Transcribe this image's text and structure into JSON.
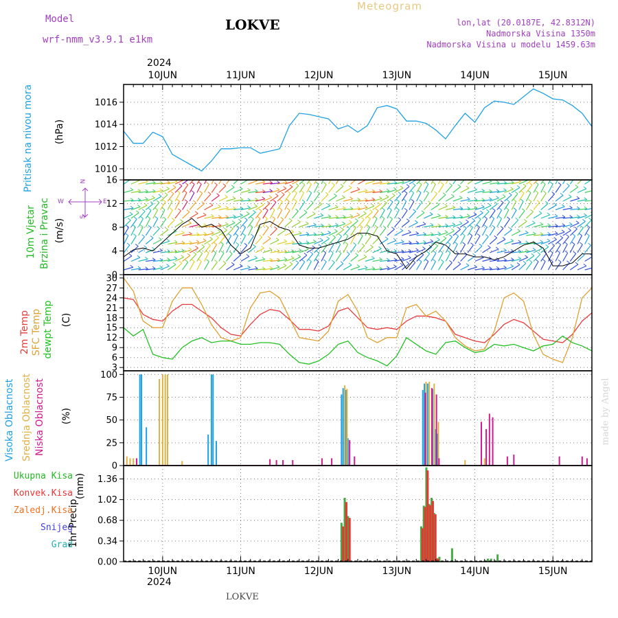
{
  "header": {
    "model_label": "Model",
    "model_name": "wrf-nmm_v3.9.1  e1km",
    "station": "LOKVE",
    "title": "Meteogram",
    "coords": "lon,lat (20.0187E, 42.8312N)",
    "elevation": "Nadmorska Visina 1350m",
    "model_elevation": "Nadmorska Visina u modelu 1459.63m",
    "year_top": "2024",
    "year_bottom": "2024",
    "footer_station": "LOKVE",
    "credit": "made by Angel"
  },
  "time_axis": {
    "start_hour": 0,
    "end_hour": 144,
    "days": [
      "10JUN",
      "11JUN",
      "12JUN",
      "13JUN",
      "14JUN",
      "15JUN"
    ],
    "day_hours": [
      12,
      36,
      60,
      84,
      108,
      132
    ]
  },
  "legend": {
    "wind_compass": [
      "N",
      "S",
      "W",
      "E"
    ],
    "precip_types": [
      {
        "label": "Ukupna Kisa",
        "color": "#22bb22"
      },
      {
        "label": "Konvek.Kisa",
        "color": "#ee3333"
      },
      {
        "label": "Zaledj.Kisa",
        "color": "#f07020"
      },
      {
        "label": "Snijeg",
        "color": "#4040dd"
      },
      {
        "label": "Grad",
        "color": "#20b0b0"
      }
    ]
  },
  "chart_data": [
    {
      "type": "line",
      "panel": "pressure",
      "ylabel_main": "Pritisak na nivou mora",
      "unit": "(hPa)",
      "ylim": [
        1009,
        1017.6
      ],
      "yticks": [
        1010,
        1012,
        1014,
        1016
      ],
      "series": [
        {
          "color": "#1ea0e6",
          "x": [
            0,
            3,
            6,
            9,
            12,
            15,
            18,
            21,
            24,
            27,
            30,
            33,
            36,
            39,
            42,
            45,
            48,
            51,
            54,
            57,
            60,
            63,
            66,
            69,
            72,
            75,
            78,
            81,
            84,
            87,
            90,
            93,
            96,
            99,
            102,
            105,
            108,
            111,
            114,
            117,
            120,
            123,
            126,
            129,
            132,
            135,
            138,
            141,
            144
          ],
          "values": [
            1013.4,
            1012.3,
            1012.3,
            1013.3,
            1012.9,
            1011.3,
            1010.8,
            1010.3,
            1009.8,
            1010.7,
            1011.8,
            1011.8,
            1011.9,
            1011.9,
            1011.4,
            1011.6,
            1011.8,
            1013.9,
            1015.0,
            1014.9,
            1014.7,
            1014.5,
            1013.6,
            1013.9,
            1013.3,
            1013.9,
            1015.5,
            1015.7,
            1015.4,
            1014.3,
            1014.3,
            1014.1,
            1013.5,
            1012.7,
            1013.9,
            1015.0,
            1014.2,
            1015.5,
            1016.1,
            1016.0,
            1015.8,
            1016.5,
            1017.2,
            1016.8,
            1016.3,
            1016.2,
            1015.7,
            1015.0,
            1013.8
          ]
        }
      ]
    },
    {
      "type": "line",
      "panel": "wind",
      "ylabel_main": "10m Vjetar",
      "ylabel_sub": "Brzina i Pravac",
      "unit": "(m/s)",
      "ylim": [
        0,
        16
      ],
      "yticks": [
        0,
        4,
        8,
        12,
        16
      ],
      "series": [
        {
          "color": "#000000",
          "x": [
            0,
            3,
            6,
            9,
            12,
            15,
            18,
            21,
            24,
            27,
            30,
            33,
            36,
            39,
            42,
            45,
            48,
            51,
            54,
            57,
            60,
            63,
            66,
            69,
            72,
            75,
            78,
            81,
            84,
            87,
            90,
            93,
            96,
            99,
            102,
            105,
            108,
            111,
            114,
            117,
            120,
            123,
            126,
            129,
            132,
            135,
            138,
            141,
            144
          ],
          "values": [
            3.0,
            4.2,
            4.5,
            4.0,
            5.5,
            7.0,
            8.5,
            9.5,
            8.0,
            8.5,
            7.5,
            5.0,
            3.5,
            4.5,
            8.5,
            9.0,
            8.0,
            7.5,
            5.0,
            4.5,
            4.5,
            5.0,
            5.5,
            6.0,
            7.0,
            7.0,
            6.5,
            4.0,
            3.5,
            1.0,
            3.0,
            4.0,
            5.5,
            5.0,
            3.5,
            3.5,
            3.0,
            3.0,
            2.5,
            3.0,
            4.0,
            5.0,
            5.5,
            4.5,
            1.5,
            1.5,
            2.0,
            3.5,
            3.5
          ]
        }
      ]
    },
    {
      "type": "line",
      "panel": "temperature",
      "ylabels": [
        "2m Temp",
        "SFC Temp",
        "dewpt Temp"
      ],
      "unit": "(C)",
      "ylim": [
        2,
        31
      ],
      "yticks": [
        3,
        6,
        9,
        12,
        15,
        18,
        21,
        24,
        27,
        30
      ],
      "series": [
        {
          "name": "2m Temp",
          "color": "#e83c3c",
          "x": [
            0,
            3,
            6,
            9,
            12,
            15,
            18,
            21,
            24,
            27,
            30,
            33,
            36,
            39,
            42,
            45,
            48,
            51,
            54,
            57,
            60,
            63,
            66,
            69,
            72,
            75,
            78,
            81,
            84,
            87,
            90,
            93,
            96,
            99,
            102,
            105,
            108,
            111,
            114,
            117,
            120,
            123,
            126,
            129,
            132,
            135,
            138,
            141,
            144
          ],
          "values": [
            24,
            23.5,
            19,
            17.5,
            17,
            20,
            22,
            22,
            20,
            18,
            15,
            13,
            12.5,
            16,
            19,
            20.5,
            20,
            17.5,
            14.5,
            14.5,
            14,
            15.5,
            20,
            21,
            18,
            15,
            14.5,
            15,
            14.5,
            17,
            18.5,
            18.5,
            18,
            17,
            13,
            12,
            11,
            10.5,
            13,
            16,
            17.5,
            16.5,
            14,
            11.5,
            11,
            10.5,
            13,
            17,
            19.5
          ]
        },
        {
          "name": "SFC Temp",
          "color": "#e0a030",
          "x": [
            0,
            3,
            6,
            9,
            12,
            15,
            18,
            21,
            24,
            27,
            30,
            33,
            36,
            39,
            42,
            45,
            48,
            51,
            54,
            57,
            60,
            63,
            66,
            69,
            72,
            75,
            78,
            81,
            84,
            87,
            90,
            93,
            96,
            99,
            102,
            105,
            108,
            111,
            114,
            117,
            120,
            123,
            126,
            129,
            132,
            135,
            138,
            141,
            144
          ],
          "values": [
            30,
            26,
            17,
            15,
            15,
            23,
            27,
            27,
            22,
            16,
            12,
            11,
            12,
            21,
            25.5,
            26,
            24,
            18,
            12,
            11.5,
            11,
            14,
            23,
            25,
            20,
            12,
            10.5,
            12,
            12,
            21,
            22,
            18.5,
            20,
            17,
            12,
            9.5,
            8,
            8.5,
            14,
            24,
            25.5,
            23,
            13,
            7,
            5.5,
            4.5,
            12,
            24,
            27
          ]
        },
        {
          "name": "dewpt Temp",
          "color": "#22c022",
          "x": [
            0,
            3,
            6,
            9,
            12,
            15,
            18,
            21,
            24,
            27,
            30,
            33,
            36,
            39,
            42,
            45,
            48,
            51,
            54,
            57,
            60,
            63,
            66,
            69,
            72,
            75,
            78,
            81,
            84,
            87,
            90,
            93,
            96,
            99,
            102,
            105,
            108,
            111,
            114,
            117,
            120,
            123,
            126,
            129,
            132,
            135,
            138,
            141,
            144
          ],
          "values": [
            15,
            12.5,
            14.5,
            7,
            6,
            5.5,
            9,
            11,
            12,
            10.5,
            11,
            11,
            10,
            10,
            10.5,
            10.5,
            10,
            7,
            4.5,
            4,
            5,
            7,
            10,
            11,
            7.5,
            6,
            5,
            3.5,
            6.5,
            12,
            10,
            8,
            7,
            10.5,
            11,
            9,
            7.5,
            8,
            10,
            9.5,
            10,
            9,
            8,
            9.5,
            10,
            12.5,
            10.5,
            9.5,
            8
          ]
        }
      ]
    },
    {
      "type": "bar",
      "panel": "clouds",
      "ylabels": [
        "Visoka Oblacnost",
        "Srednja Oblacnost",
        "Niska Oblacnost"
      ],
      "unit": "(%)",
      "ylim": [
        0,
        104
      ],
      "yticks": [
        0,
        25,
        50,
        75,
        100
      ],
      "series": [
        {
          "name": "Visoka Oblacnost",
          "color": "#1ea0e6",
          "points": [
            [
              5,
              100
            ],
            [
              5.5,
              100
            ],
            [
              7,
              42
            ],
            [
              26,
              34
            ],
            [
              27,
              100
            ],
            [
              27.5,
              100
            ],
            [
              28.5,
              27
            ],
            [
              67,
              78
            ],
            [
              67.5,
              85
            ],
            [
              68.3,
              83
            ],
            [
              69,
              30
            ],
            [
              92,
              83
            ],
            [
              92.5,
              90
            ],
            [
              93.5,
              90
            ],
            [
              95,
              84
            ],
            [
              96,
              40
            ],
            [
              96.5,
              35
            ]
          ]
        },
        {
          "name": "Srednja Oblacnost",
          "color": "#e0b040",
          "points": [
            [
              1,
              10
            ],
            [
              2,
              8
            ],
            [
              3,
              8
            ],
            [
              11,
              95
            ],
            [
              12,
              100
            ],
            [
              12.8,
              100
            ],
            [
              13.5,
              100
            ],
            [
              18,
              5
            ],
            [
              68,
              88
            ],
            [
              68.7,
              84
            ],
            [
              93,
              92
            ],
            [
              94,
              92
            ],
            [
              95.5,
              90
            ],
            [
              96.8,
              48
            ],
            [
              105,
              6
            ],
            [
              111,
              8
            ]
          ]
        },
        {
          "name": "Niska Oblacnost",
          "color": "#d01890",
          "points": [
            [
              4,
              8
            ],
            [
              45,
              7
            ],
            [
              47,
              6
            ],
            [
              49,
              6
            ],
            [
              52,
              6
            ],
            [
              61,
              8
            ],
            [
              64,
              8
            ],
            [
              69.5,
              28
            ],
            [
              71,
              10
            ],
            [
              92.8,
              80
            ],
            [
              94.8,
              85
            ],
            [
              96.2,
              78
            ],
            [
              97,
              8
            ],
            [
              110,
              48
            ],
            [
              111.5,
              40
            ],
            [
              112.5,
              57
            ],
            [
              113.5,
              53
            ],
            [
              118,
              10
            ],
            [
              120,
              12
            ],
            [
              134,
              10
            ],
            [
              141,
              10
            ],
            [
              142.5,
              8
            ]
          ]
        }
      ]
    },
    {
      "type": "bar",
      "panel": "precip",
      "ylabel_main": "1hr Precip",
      "unit": "(mm)",
      "ylim": [
        0,
        1.58
      ],
      "yticks": [
        0,
        0.34,
        0.68,
        1.02,
        1.36
      ],
      "series": [
        {
          "name": "Ukupna Kisa",
          "color": "#44aa44",
          "points": [
            [
              67,
              0.64
            ],
            [
              68,
              1.05
            ],
            [
              69,
              0.75
            ],
            [
              91.5,
              0.58
            ],
            [
              92.3,
              0.92
            ],
            [
              93.1,
              1.55
            ],
            [
              93.9,
              0.95
            ],
            [
              94.7,
              1.05
            ],
            [
              95.5,
              0.8
            ],
            [
              96.3,
              0.06
            ],
            [
              97.1,
              0.08
            ],
            [
              101,
              0.22
            ],
            [
              111,
              0.02
            ],
            [
              112,
              0.05
            ],
            [
              113,
              0.05
            ],
            [
              115,
              0.12
            ]
          ]
        },
        {
          "name": "Konvek.Kisa",
          "color": "#ee3333",
          "points": [
            [
              67.5,
              0.58
            ],
            [
              68.5,
              0.98
            ],
            [
              69.5,
              0.72
            ],
            [
              91.9,
              0.55
            ],
            [
              92.7,
              0.9
            ],
            [
              93.5,
              1.5
            ],
            [
              94.3,
              0.93
            ],
            [
              95.1,
              1.0
            ],
            [
              95.9,
              0.78
            ],
            [
              96.7,
              0.05
            ]
          ]
        }
      ]
    }
  ]
}
